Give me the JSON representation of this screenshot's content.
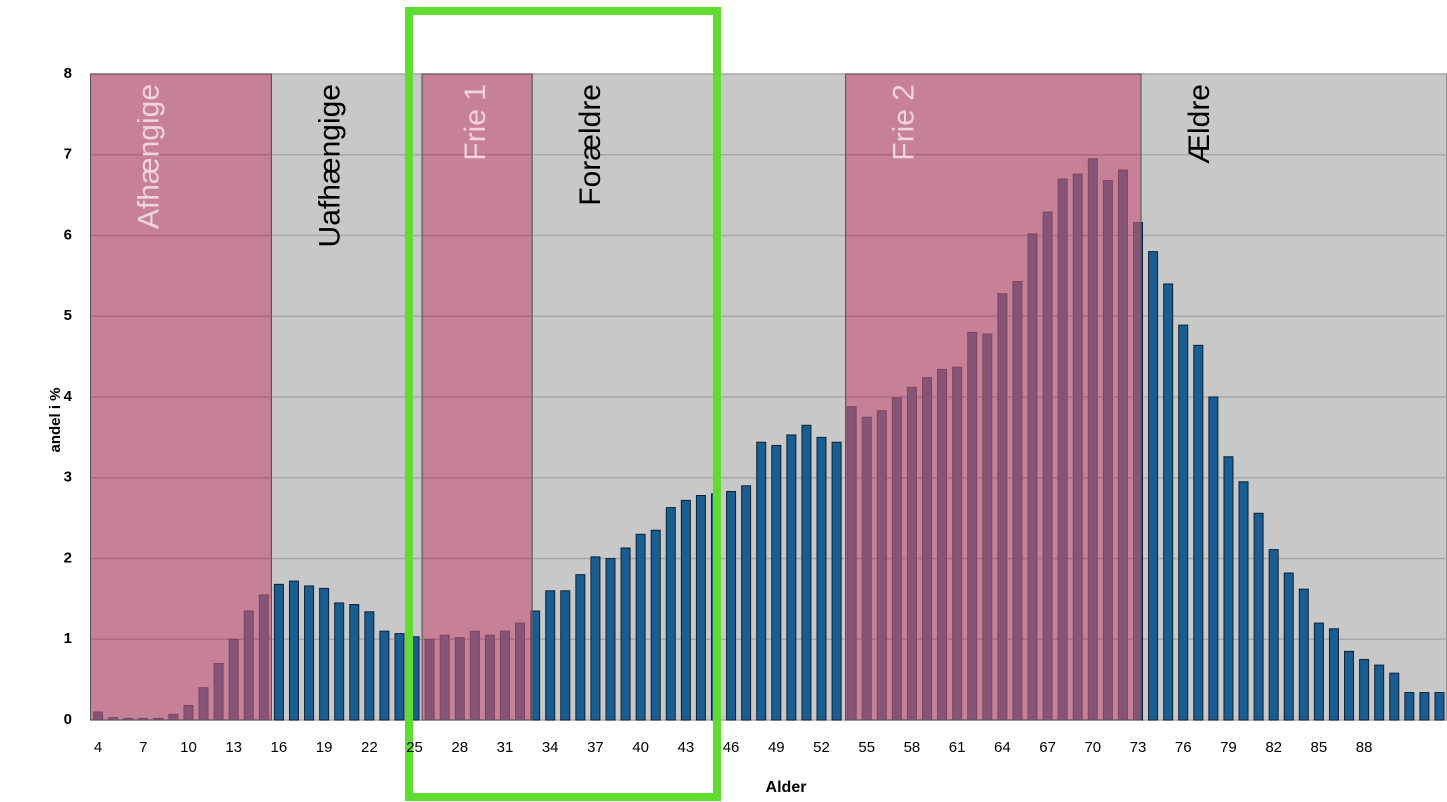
{
  "chart_data": {
    "type": "bar",
    "x_label": "Alder",
    "y_label": "andel i %",
    "categories": [
      "4",
      null,
      null,
      "7",
      null,
      null,
      "10",
      null,
      null,
      "13",
      null,
      null,
      "16",
      null,
      null,
      "19",
      null,
      null,
      "22",
      null,
      null,
      "25",
      null,
      null,
      "28",
      null,
      null,
      "31",
      null,
      null,
      "34",
      null,
      null,
      "37",
      null,
      null,
      "40",
      null,
      null,
      "43",
      null,
      null,
      "46",
      null,
      null,
      "49",
      null,
      null,
      "52",
      null,
      null,
      "55",
      null,
      null,
      "58",
      null,
      null,
      "61",
      null,
      null,
      "64",
      null,
      null,
      "67",
      null,
      null,
      "70",
      null,
      null,
      "73",
      null,
      null,
      "76",
      null,
      null,
      "79",
      null,
      null,
      "82",
      null,
      null,
      "85",
      null,
      null,
      "88",
      null,
      null,
      null,
      null,
      null
    ],
    "values": [
      0.1,
      0.03,
      0.02,
      0.02,
      0.02,
      0.07,
      0.18,
      0.4,
      0.7,
      1.0,
      1.35,
      1.55,
      1.68,
      1.72,
      1.66,
      1.63,
      1.45,
      1.43,
      1.34,
      1.1,
      1.07,
      1.03,
      1.0,
      1.05,
      1.02,
      1.1,
      1.05,
      1.1,
      1.2,
      1.35,
      1.6,
      1.6,
      1.8,
      2.02,
      2.0,
      2.13,
      2.3,
      2.35,
      2.63,
      2.72,
      2.78,
      2.8,
      2.83,
      2.9,
      3.44,
      3.4,
      3.53,
      3.65,
      3.5,
      3.44,
      3.88,
      3.75,
      3.83,
      3.99,
      4.12,
      4.24,
      4.34,
      4.37,
      4.8,
      4.78,
      5.28,
      5.43,
      6.02,
      6.29,
      6.7,
      6.76,
      6.95,
      6.68,
      6.81,
      6.16,
      5.8,
      5.4,
      4.89,
      4.64,
      4.0,
      3.26,
      2.95,
      2.56,
      2.11,
      1.82,
      1.62,
      1.2,
      1.13,
      0.85,
      0.75,
      0.68,
      0.58,
      0.34,
      0.34,
      0.34
    ],
    "color": "#1a5d90",
    "ylim": [
      0,
      8
    ],
    "yticks": [
      0,
      1,
      2,
      3,
      4,
      5,
      6,
      7,
      8
    ],
    "grid": true,
    "regions": [
      {
        "label": "Afhængige",
        "start": 3.5,
        "end": 15.5,
        "color": "#b0506e"
      },
      {
        "label": "Uafhængige",
        "start": 15.5,
        "end": 25.5,
        "color": "#c8c8c8"
      },
      {
        "label": "Frie 1",
        "start": 25.5,
        "end": 32.8,
        "color": "#b0506e"
      },
      {
        "label": "Forældre",
        "start": 32.8,
        "end": 53.6,
        "color": "#c8c8c8"
      },
      {
        "label": "Frie 2",
        "start": 53.6,
        "end": 73.2,
        "color": "#b0506e"
      },
      {
        "label": "Ældre",
        "start": 73.2,
        "end": 93.5,
        "color": "#c8c8c8"
      }
    ]
  }
}
